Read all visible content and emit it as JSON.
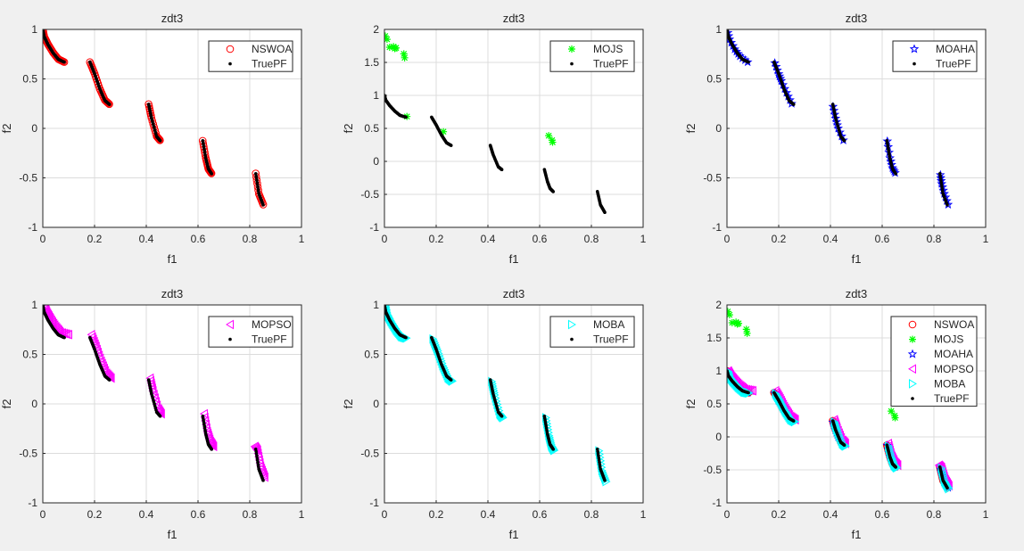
{
  "chart_data": {
    "type": "scatter",
    "series": {
      "TruePF": {
        "marker": "dot",
        "color": "#000000",
        "segments": [
          [
            [
              0,
              1
            ],
            [
              0.005,
              0.9285
            ],
            [
              0.02,
              0.8468
            ],
            [
              0.04,
              0.762
            ],
            [
              0.06,
              0.698
            ],
            [
              0.083,
              0.6696
            ]
          ],
          [
            [
              0.1822,
              0.6699
            ],
            [
              0.2,
              0.5528
            ],
            [
              0.22,
              0.4017
            ],
            [
              0.24,
              0.2819
            ],
            [
              0.2577,
              0.2418
            ]
          ],
          [
            [
              0.4093,
              0.2423
            ],
            [
              0.42,
              0.105
            ],
            [
              0.44,
              -0.0817
            ],
            [
              0.4538,
              -0.1242
            ]
          ],
          [
            [
              0.6184,
              -0.1238
            ],
            [
              0.63,
              -0.3034
            ],
            [
              0.64,
              -0.4087
            ],
            [
              0.6525,
              -0.4584
            ]
          ],
          [
            [
              0.8233,
              -0.4574
            ],
            [
              0.835,
              -0.6578
            ],
            [
              0.8518,
              -0.7733
            ]
          ]
        ]
      },
      "NSWOA": {
        "marker": "circle",
        "color": "#ff0000",
        "segments": [
          [
            [
              0,
              1
            ],
            [
              0.005,
              0.93
            ],
            [
              0.02,
              0.85
            ],
            [
              0.04,
              0.765
            ],
            [
              0.06,
              0.7
            ],
            [
              0.083,
              0.67
            ]
          ],
          [
            [
              0.182,
              0.67
            ],
            [
              0.2,
              0.555
            ],
            [
              0.22,
              0.4
            ],
            [
              0.24,
              0.285
            ],
            [
              0.257,
              0.245
            ]
          ],
          [
            [
              0.409,
              0.245
            ],
            [
              0.42,
              0.105
            ],
            [
              0.44,
              -0.08
            ],
            [
              0.453,
              -0.12
            ]
          ],
          [
            [
              0.618,
              -0.125
            ],
            [
              0.63,
              -0.3
            ],
            [
              0.64,
              -0.41
            ],
            [
              0.652,
              -0.455
            ]
          ],
          [
            [
              0.823,
              -0.455
            ],
            [
              0.835,
              -0.66
            ],
            [
              0.852,
              -0.77
            ]
          ]
        ]
      },
      "MOJS": {
        "marker": "asterisk",
        "color": "#00ff00",
        "segments": [
          [
            [
              0.003,
              1.9
            ],
            [
              0.01,
              1.85
            ],
            [
              0.02,
              1.73
            ],
            [
              0.035,
              1.74
            ],
            [
              0.04,
              1.71
            ],
            [
              0.045,
              1.72
            ],
            [
              0.075,
              1.63
            ],
            [
              0.078,
              1.57
            ],
            [
              0.087,
              0.68
            ],
            [
              0.228,
              0.45
            ],
            [
              0.635,
              0.39
            ],
            [
              0.648,
              0.32
            ],
            [
              0.65,
              0.29
            ]
          ]
        ]
      },
      "MOAHA": {
        "marker": "pentagram",
        "color": "#0000ff",
        "segments": [
          [
            [
              0,
              1
            ],
            [
              0.01,
              0.9
            ],
            [
              0.03,
              0.8
            ],
            [
              0.05,
              0.73
            ],
            [
              0.08,
              0.67
            ]
          ],
          [
            [
              0.185,
              0.66
            ],
            [
              0.2,
              0.55
            ],
            [
              0.21,
              0.48
            ],
            [
              0.23,
              0.36
            ],
            [
              0.25,
              0.25
            ]
          ],
          [
            [
              0.41,
              0.22
            ],
            [
              0.42,
              0.1
            ],
            [
              0.43,
              0.0
            ],
            [
              0.45,
              -0.12
            ]
          ],
          [
            [
              0.62,
              -0.13
            ],
            [
              0.63,
              -0.3
            ],
            [
              0.64,
              -0.4
            ],
            [
              0.65,
              -0.45
            ]
          ],
          [
            [
              0.825,
              -0.47
            ],
            [
              0.83,
              -0.56
            ],
            [
              0.84,
              -0.66
            ],
            [
              0.855,
              -0.77
            ]
          ]
        ]
      },
      "MOPSO": {
        "marker": "triangle-left",
        "color": "#ff00ff",
        "segments": [
          [
            [
              0.005,
              1.0
            ],
            [
              0.015,
              0.93
            ],
            [
              0.03,
              0.86
            ],
            [
              0.05,
              0.78
            ],
            [
              0.07,
              0.72
            ],
            [
              0.1,
              0.7
            ]
          ],
          [
            [
              0.188,
              0.7
            ],
            [
              0.206,
              0.58
            ],
            [
              0.226,
              0.43
            ],
            [
              0.246,
              0.31
            ],
            [
              0.264,
              0.26
            ]
          ],
          [
            [
              0.415,
              0.26
            ],
            [
              0.426,
              0.13
            ],
            [
              0.446,
              -0.05
            ],
            [
              0.458,
              -0.1
            ]
          ],
          [
            [
              0.624,
              -0.1
            ],
            [
              0.636,
              -0.28
            ],
            [
              0.648,
              -0.38
            ],
            [
              0.66,
              -0.43
            ]
          ],
          [
            [
              0.82,
              -0.43
            ],
            [
              0.83,
              -0.47
            ],
            [
              0.842,
              -0.63
            ],
            [
              0.858,
              -0.74
            ]
          ]
        ]
      },
      "MOBA": {
        "marker": "triangle-right",
        "color": "#00ffff",
        "segments": [
          [
            [
              0.004,
              0.99
            ],
            [
              0.01,
              0.91
            ],
            [
              0.026,
              0.83
            ],
            [
              0.046,
              0.745
            ],
            [
              0.066,
              0.68
            ],
            [
              0.085,
              0.665
            ]
          ],
          [
            [
              0.188,
              0.655
            ],
            [
              0.206,
              0.535
            ],
            [
              0.226,
              0.385
            ],
            [
              0.246,
              0.265
            ],
            [
              0.262,
              0.23
            ]
          ],
          [
            [
              0.415,
              0.225
            ],
            [
              0.426,
              0.09
            ],
            [
              0.446,
              -0.1
            ],
            [
              0.458,
              -0.14
            ]
          ],
          [
            [
              0.624,
              -0.14
            ],
            [
              0.636,
              -0.32
            ],
            [
              0.646,
              -0.425
            ],
            [
              0.656,
              -0.47
            ]
          ],
          [
            [
              0.829,
              -0.475
            ],
            [
              0.841,
              -0.675
            ],
            [
              0.857,
              -0.785
            ]
          ]
        ]
      }
    },
    "panels": [
      {
        "title": "zdt3",
        "xlabel": "f1",
        "ylabel": "f2",
        "xlim": [
          0,
          1
        ],
        "ylim": [
          -1,
          1
        ],
        "xticks": [
          "0",
          "0.2",
          "0.4",
          "0.6",
          "0.8",
          "1"
        ],
        "yticks": [
          "-1",
          "-0.5",
          "0",
          "0.5",
          "1"
        ],
        "grid": true,
        "legend_position": "top-right",
        "legend": [
          "NSWOA",
          "TruePF"
        ]
      },
      {
        "title": "zdt3",
        "xlabel": "f1",
        "ylabel": "f2",
        "xlim": [
          0,
          1
        ],
        "ylim": [
          -1,
          2
        ],
        "xticks": [
          "0",
          "0.2",
          "0.4",
          "0.6",
          "0.8",
          "1"
        ],
        "yticks": [
          "-1",
          "-0.5",
          "0",
          "0.5",
          "1",
          "1.5",
          "2"
        ],
        "grid": true,
        "legend_position": "top-right",
        "legend": [
          "MOJS",
          "TruePF"
        ]
      },
      {
        "title": "zdt3",
        "xlabel": "f1",
        "ylabel": "f2",
        "xlim": [
          0,
          1
        ],
        "ylim": [
          -1,
          1
        ],
        "xticks": [
          "0",
          "0.2",
          "0.4",
          "0.6",
          "0.8",
          "1"
        ],
        "yticks": [
          "-1",
          "-0.5",
          "0",
          "0.5",
          "1"
        ],
        "grid": true,
        "legend_position": "top-right",
        "legend": [
          "MOAHA",
          "TruePF"
        ]
      },
      {
        "title": "zdt3",
        "xlabel": "f1",
        "ylabel": "f2",
        "xlim": [
          0,
          1
        ],
        "ylim": [
          -1,
          1
        ],
        "xticks": [
          "0",
          "0.2",
          "0.4",
          "0.6",
          "0.8",
          "1"
        ],
        "yticks": [
          "-1",
          "-0.5",
          "0",
          "0.5",
          "1"
        ],
        "grid": true,
        "legend_position": "top-right",
        "legend": [
          "MOPSO",
          "TruePF"
        ]
      },
      {
        "title": "zdt3",
        "xlabel": "f1",
        "ylabel": "f2",
        "xlim": [
          0,
          1
        ],
        "ylim": [
          -1,
          1
        ],
        "xticks": [
          "0",
          "0.2",
          "0.4",
          "0.6",
          "0.8",
          "1"
        ],
        "yticks": [
          "-1",
          "-0.5",
          "0",
          "0.5",
          "1"
        ],
        "grid": true,
        "legend_position": "top-right",
        "legend": [
          "MOBA",
          "TruePF"
        ]
      },
      {
        "title": "zdt3",
        "xlabel": "f1",
        "ylabel": "f2",
        "xlim": [
          0,
          1
        ],
        "ylim": [
          -1,
          2
        ],
        "xticks": [
          "0",
          "0.2",
          "0.4",
          "0.6",
          "0.8",
          "1"
        ],
        "yticks": [
          "-1",
          "-0.5",
          "0",
          "0.5",
          "1",
          "1.5",
          "2"
        ],
        "grid": true,
        "legend_position": "top-right",
        "legend": [
          "NSWOA",
          "MOJS",
          "MOAHA",
          "MOPSO",
          "MOBA",
          "TruePF"
        ]
      }
    ]
  }
}
